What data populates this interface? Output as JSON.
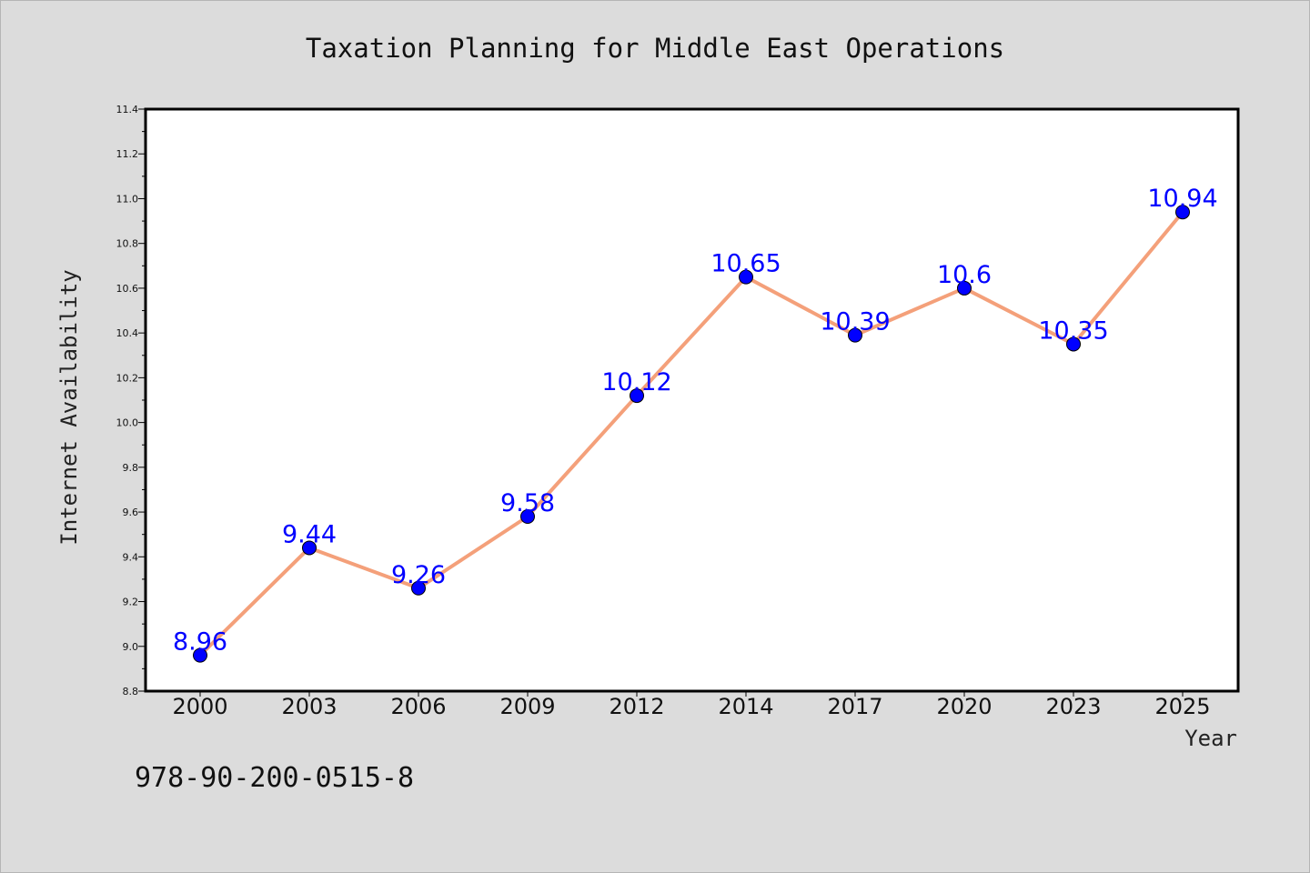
{
  "chart_data": {
    "type": "line",
    "title": "Taxation Planning for Middle East Operations",
    "xlabel": "Year",
    "ylabel": "Internet Availability",
    "x": [
      "2000",
      "2003",
      "2006",
      "2009",
      "2012",
      "2014",
      "2017",
      "2020",
      "2023",
      "2025"
    ],
    "series": [
      {
        "values": [
          8.96,
          9.44,
          9.26,
          9.58,
          10.12,
          10.65,
          10.39,
          10.6,
          10.35,
          10.94
        ],
        "line_color": "#f4a07a",
        "marker_color": "#0000ff"
      }
    ],
    "data_labels": [
      "8.96",
      "9.44",
      "9.26",
      "9.58",
      "10.12",
      "10.65",
      "10.39",
      "10.6",
      "10.35",
      "10.94"
    ],
    "ylim": [
      8.8,
      11.4
    ],
    "yticks": [
      "8.8",
      "9.0",
      "9.2",
      "9.4",
      "9.6",
      "9.8",
      "10.0",
      "10.2",
      "10.4",
      "10.6",
      "10.8",
      "11.0",
      "11.2",
      "11.4"
    ],
    "grid": false,
    "legend": "none",
    "label_color": "#0000ff"
  },
  "footer": {
    "isbn": "978-90-200-0515-8"
  }
}
